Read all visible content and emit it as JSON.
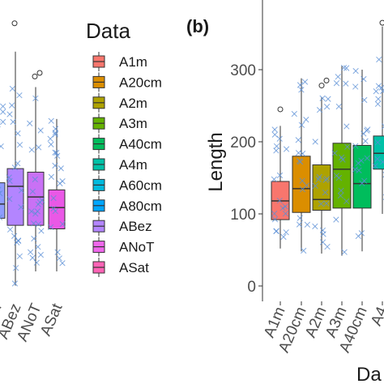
{
  "chart_data": [
    {
      "type": "box",
      "panel": "a",
      "categories": [
        "A1m",
        "A20cm",
        "A2m",
        "A3m",
        "A40cm",
        "A4m",
        "A60cm",
        "A80cm",
        "ABez",
        "ANoT",
        "ASat"
      ],
      "visible_tick_labels": [
        "...m",
        "ABez",
        "ANoT",
        "ASat"
      ],
      "boxes": [
        {
          "category": "A80cm",
          "q1": 115,
          "median": 135,
          "q3": 165,
          "whisker_low": 30,
          "whisker_high": 310,
          "outliers": []
        },
        {
          "category": "ABez",
          "q1": 105,
          "median": 160,
          "q3": 185,
          "whisker_low": 20,
          "whisker_high": 350,
          "outliers": [
            390
          ]
        },
        {
          "category": "ANoT",
          "q1": 105,
          "median": 145,
          "q3": 180,
          "whisker_low": 40,
          "whisker_high": 300,
          "outliers": [
            315,
            320
          ]
        },
        {
          "category": "ASat",
          "q1": 100,
          "median": 130,
          "q3": 155,
          "whisker_low": 40,
          "whisker_high": 255,
          "outliers": []
        }
      ],
      "ylim": [
        0,
        400
      ]
    },
    {
      "type": "box",
      "panel": "b",
      "title": "(b)",
      "ylabel": "Length",
      "xlabel": "Da",
      "yticks": [
        "0",
        "100",
        "200",
        "300"
      ],
      "ylim": [
        -10,
        380
      ],
      "categories": [
        "A1m",
        "A20cm",
        "A2m",
        "A3m",
        "A40cm",
        "A4"
      ],
      "boxes": [
        {
          "category": "A1m",
          "q1": 92,
          "median": 118,
          "q3": 145,
          "whisker_low": 52,
          "whisker_high": 222,
          "outliers": [
            245
          ]
        },
        {
          "category": "A20cm",
          "q1": 102,
          "median": 135,
          "q3": 180,
          "whisker_low": 48,
          "whisker_high": 288,
          "outliers": []
        },
        {
          "category": "A2m",
          "q1": 105,
          "median": 120,
          "q3": 168,
          "whisker_low": 45,
          "whisker_high": 262,
          "outliers": [
            278,
            285
          ]
        },
        {
          "category": "A3m",
          "q1": 108,
          "median": 162,
          "q3": 198,
          "whisker_low": 42,
          "whisker_high": 305,
          "outliers": []
        },
        {
          "category": "A40cm",
          "q1": 108,
          "median": 142,
          "q3": 195,
          "whisker_low": 48,
          "whisker_high": 300,
          "outliers": []
        },
        {
          "category": "A4",
          "q1": 162,
          "median": 184,
          "q3": 208,
          "whisker_low": 100,
          "whisker_high": 360,
          "outliers": [
            365,
            378
          ]
        }
      ]
    }
  ],
  "legend": {
    "title": "Data",
    "items": [
      {
        "label": "A1m",
        "color": "#f8766d"
      },
      {
        "label": "A20cm",
        "color": "#db8e00"
      },
      {
        "label": "A2m",
        "color": "#aea200"
      },
      {
        "label": "A3m",
        "color": "#64b200"
      },
      {
        "label": "A40cm",
        "color": "#00bd5c"
      },
      {
        "label": "A4m",
        "color": "#00c1a7"
      },
      {
        "label": "A60cm",
        "color": "#00bade"
      },
      {
        "label": "A80cm",
        "color": "#00a6ff"
      },
      {
        "label": "ABez",
        "color": "#b385ff"
      },
      {
        "label": "ANoT",
        "color": "#ef67eb"
      },
      {
        "label": "ASat",
        "color": "#ff63b6"
      }
    ]
  },
  "colors": {
    "box_a": [
      "#8f9cff",
      "#b385ff",
      "#c971f5",
      "#ea58e6"
    ],
    "points": "#5b8fd6"
  }
}
